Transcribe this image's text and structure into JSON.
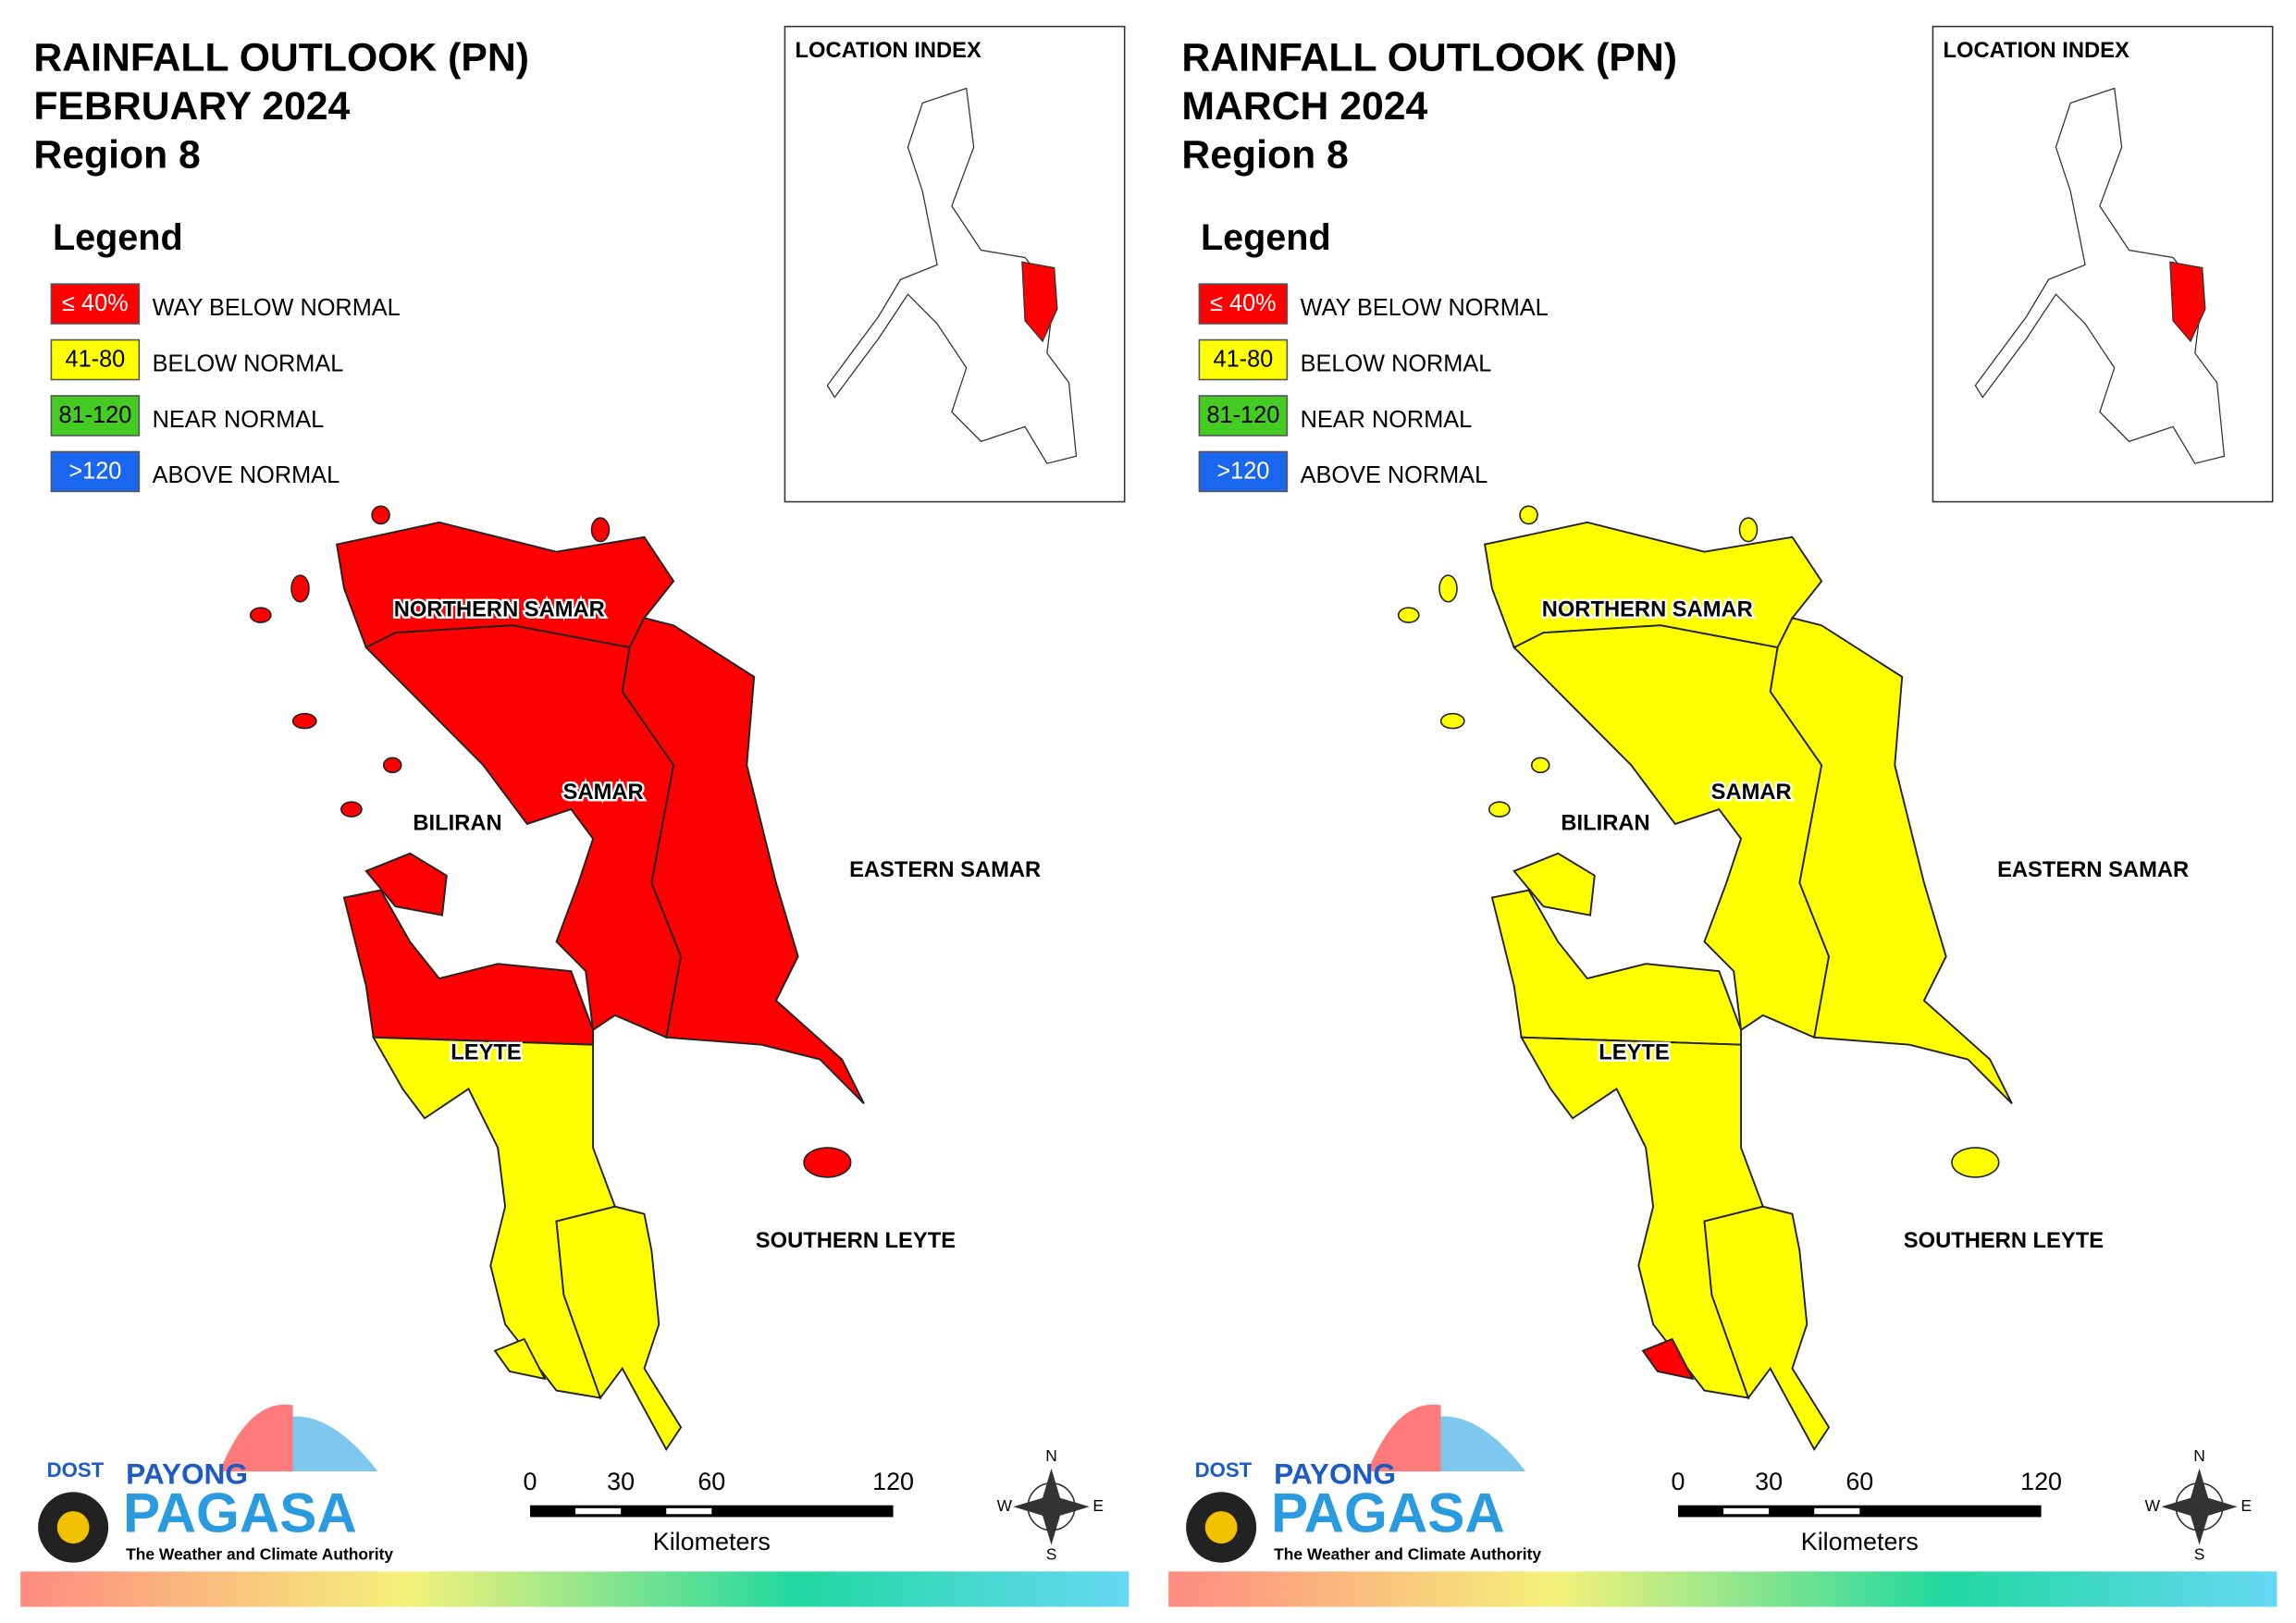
{
  "panels": [
    {
      "title": [
        "RAINFALL OUTLOOK (PN)",
        "FEBRUARY 2024",
        "Region 8"
      ],
      "areas": [
        {
          "label": "NORTHERN SAMAR",
          "color": "#ff0000"
        },
        {
          "label": "SAMAR",
          "color": "#ff0000"
        },
        {
          "label": "EASTERN SAMAR",
          "color": "#ff0000"
        },
        {
          "label": "BILIRAN",
          "color": "#ff0000"
        },
        {
          "label": null,
          "color": "#ff0000"
        },
        {
          "label": "LEYTE",
          "color": "#ffff00"
        },
        {
          "label": "SOUTHERN LEYTE",
          "color": "#ffff00"
        },
        {
          "label": null,
          "color": "#ffff00"
        }
      ]
    },
    {
      "title": [
        "RAINFALL OUTLOOK (PN)",
        "MARCH 2024",
        "Region 8"
      ],
      "areas": [
        {
          "label": "NORTHERN SAMAR",
          "color": "#ffff00"
        },
        {
          "label": "SAMAR",
          "color": "#ffff00"
        },
        {
          "label": "EASTERN SAMAR",
          "color": "#ffff00"
        },
        {
          "label": "BILIRAN",
          "color": "#ffff00"
        },
        {
          "label": null,
          "color": "#ffff00"
        },
        {
          "label": "LEYTE",
          "color": "#ffff00"
        },
        {
          "label": "SOUTHERN LEYTE",
          "color": "#ffff00"
        },
        {
          "label": null,
          "color": "#ff0000"
        }
      ]
    }
  ],
  "legend": {
    "title": "Legend",
    "items": [
      {
        "range": "≤ 40%",
        "label": "WAY BELOW NORMAL",
        "color": "#ff0000"
      },
      {
        "range": "41-80",
        "label": "BELOW NORMAL",
        "color": "#ffff00"
      },
      {
        "range": "81-120",
        "label": "NEAR NORMAL",
        "color": "#44cc22"
      },
      {
        "range": ">120",
        "label": "ABOVE NORMAL",
        "color": "#1a66ee"
      }
    ]
  },
  "inset": {
    "title": "LOCATION INDEX"
  },
  "scale": {
    "labels": [
      "0",
      "30",
      "60",
      "120"
    ],
    "unit": "Kilometers"
  },
  "compass": [
    "N",
    "E",
    "S",
    "W"
  ],
  "logo": {
    "agency": "DOST",
    "top": "PAYONG",
    "main": "PAGASA",
    "tagline": "The Weather and Climate Authority"
  }
}
